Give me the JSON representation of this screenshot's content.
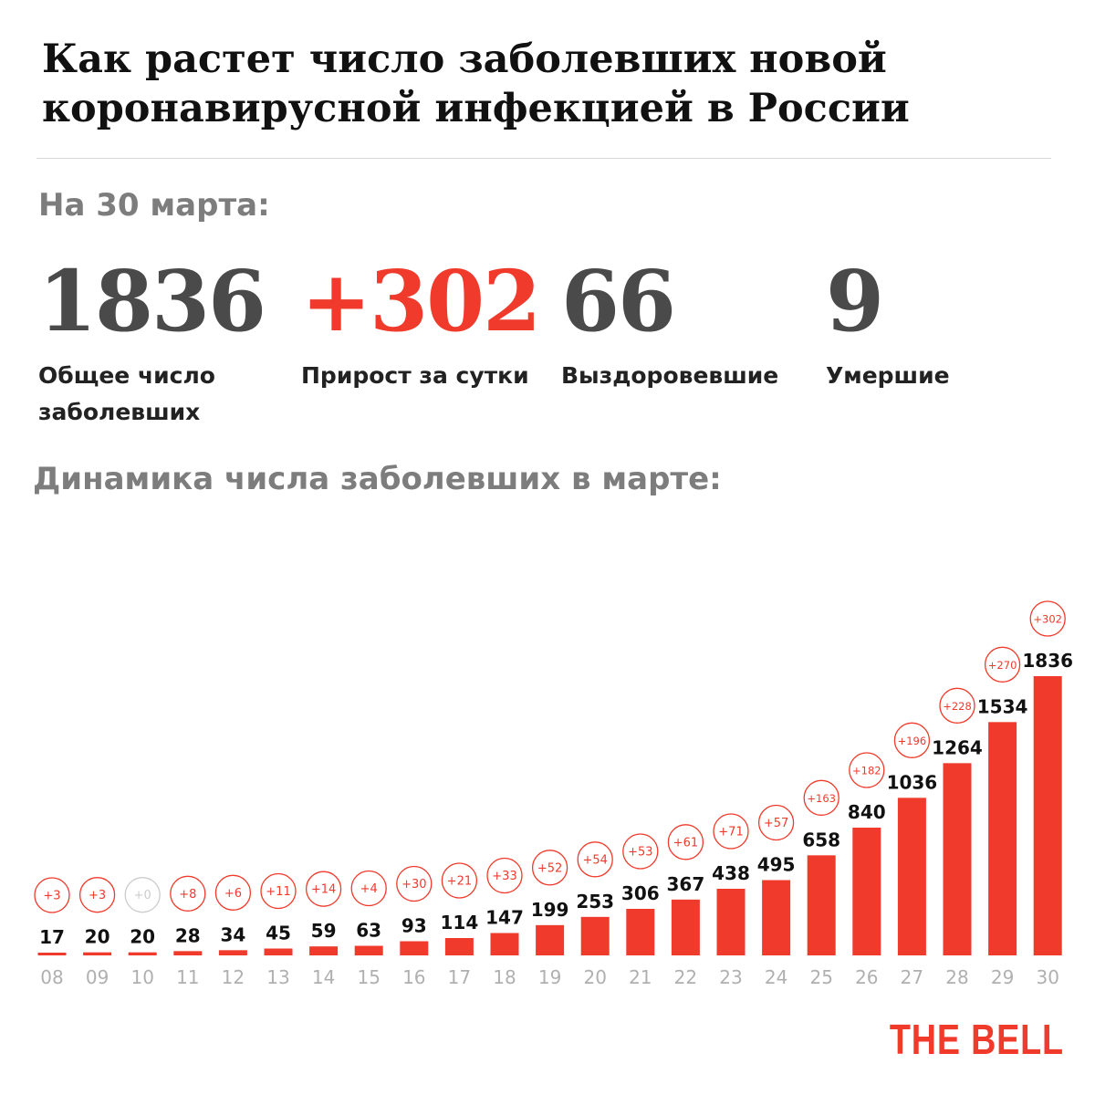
{
  "header": {
    "title": "Как растет число заболевших новой коронавирусной инфекцией в России"
  },
  "summary": {
    "as_of": "На 30 марта:",
    "stats": [
      {
        "value": "1836",
        "label": "Общее число заболевших"
      },
      {
        "value": "+302",
        "label": "Прирост за сутки"
      },
      {
        "value": "66",
        "label": "Выздоровевшие"
      },
      {
        "value": "9",
        "label": "Умершие"
      }
    ]
  },
  "dynamics_title": "Динамика числа заболевших в марте:",
  "colors": {
    "accent": "#f03a2b",
    "number_gray": "#4a4a4a",
    "label_gray": "#7d7d7d",
    "tick_gray": "#b0b0b0",
    "zero_badge": "#cccccc"
  },
  "chart_data": {
    "type": "bar",
    "categories": [
      "08",
      "09",
      "10",
      "11",
      "12",
      "13",
      "14",
      "15",
      "16",
      "17",
      "18",
      "19",
      "20",
      "21",
      "22",
      "23",
      "24",
      "25",
      "26",
      "27",
      "28",
      "29",
      "30"
    ],
    "values": [
      17,
      20,
      20,
      28,
      34,
      45,
      59,
      63,
      93,
      114,
      147,
      199,
      253,
      306,
      367,
      438,
      495,
      658,
      840,
      1036,
      1264,
      1534,
      1836
    ],
    "daily_increase": [
      "+3",
      "+3",
      "+0",
      "+8",
      "+6",
      "+11",
      "+14",
      "+4",
      "+30",
      "+21",
      "+33",
      "+52",
      "+54",
      "+53",
      "+61",
      "+71",
      "+57",
      "+163",
      "+182",
      "+196",
      "+228",
      "+270",
      "+302"
    ],
    "xlabel": "",
    "ylabel": "",
    "grid": false,
    "legend": "none"
  },
  "brand": "THE BELL"
}
